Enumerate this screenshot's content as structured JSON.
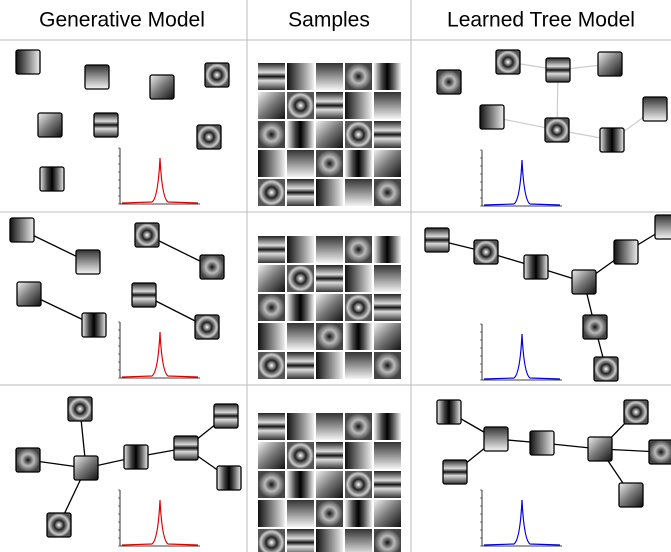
{
  "header": {
    "columns": [
      "Generative Model",
      "Samples",
      "Learned Tree Model"
    ]
  }
}
